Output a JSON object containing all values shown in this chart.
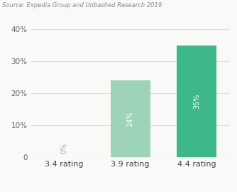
{
  "categories": [
    "3.4 rating",
    "3.9 rating",
    "4.4 rating"
  ],
  "values": [
    0,
    24,
    35
  ],
  "bar_colors": [
    "#c8e6d8",
    "#9dd4b8",
    "#3db88a"
  ],
  "label_texts": [
    "0%",
    "24%",
    "35%"
  ],
  "ylim": [
    0,
    42
  ],
  "yticks": [
    0,
    10,
    20,
    30,
    40
  ],
  "ytick_labels": [
    "0",
    "10%",
    "20%",
    "30%",
    "40%"
  ],
  "source_text": "Source: Expedia Group and Unbashed Research 2019",
  "background_color": "#f9f9f7",
  "bar_width": 0.6,
  "label_fontsize": 7,
  "tick_fontsize": 7.5,
  "source_fontsize": 6,
  "xlabel_fontsize": 8
}
